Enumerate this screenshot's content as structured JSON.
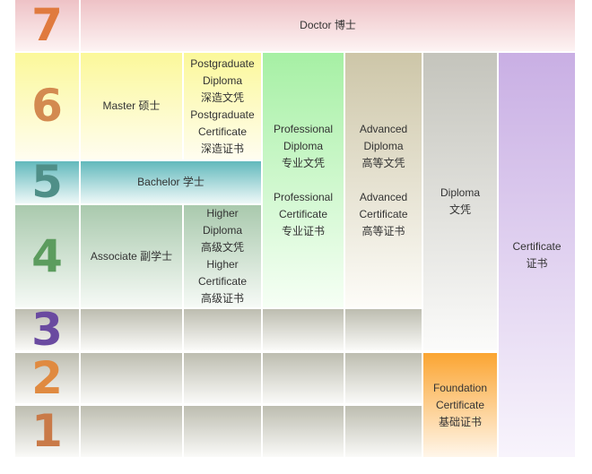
{
  "levels": [
    "7",
    "6",
    "5",
    "4",
    "3",
    "2",
    "1"
  ],
  "level_colors": {
    "7": "#e07a3e",
    "6": "#d38a50",
    "5": "#4f8f88",
    "4": "#5c9c5e",
    "3": "#6a4aa0",
    "2": "#e08a40",
    "1": "#c97a48"
  },
  "cells": {
    "doctor": "Doctor 博士",
    "master": "Master 硕士",
    "postgraduate": [
      "Postgraduate",
      "Diploma",
      "深造文凭",
      "Postgraduate",
      "Certificate",
      "深造证书"
    ],
    "bachelor": "Bachelor 学士",
    "associate": "Associate 副学士",
    "higher": [
      "Higher",
      "Diploma",
      "高级文凭",
      "Higher",
      "Certificate",
      "高级证书"
    ],
    "professional": [
      "Professional",
      "Diploma",
      "专业文凭",
      "",
      "Professional",
      "Certificate",
      "专业证书"
    ],
    "advanced": [
      "Advanced",
      "Diploma",
      "高等文凭",
      "",
      "Advanced",
      "Certificate",
      "高等证书"
    ],
    "diploma": [
      "Diploma",
      "文凭"
    ],
    "certificate": [
      "Certificate",
      "证书"
    ],
    "foundation": [
      "Foundation",
      "Certificate",
      "基础证书"
    ]
  }
}
